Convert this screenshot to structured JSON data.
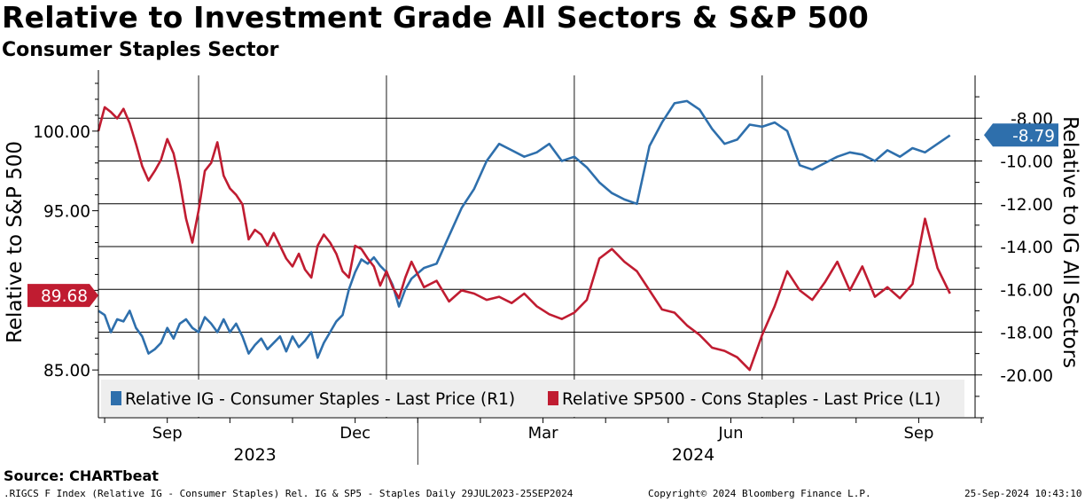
{
  "header": {
    "title": "Relative to Investment Grade All Sectors & S&P 500",
    "subtitle": "Consumer Staples Sector"
  },
  "footer": {
    "source": "Source: CHARTbeat",
    "description": ".RIGCS F Index (Relative IG - Consumer Staples) Rel. IG & SP5 - Staples  Daily 29JUL2023-25SEP2024",
    "copyright": "Copyright© 2024 Bloomberg Finance L.P.",
    "timestamp": "25-Sep-2024 10:43:10"
  },
  "colors": {
    "blue": "#2e6fac",
    "red": "#c01c31"
  },
  "chart_data": {
    "type": "line",
    "title": "Relative to Investment Grade All Sectors & S&P 500",
    "subtitle": "Consumer Staples Sector",
    "x_range": [
      0,
      14.0
    ],
    "x_unit": "months since 2023-07-29",
    "x_ticks": [
      {
        "pos": 1.1,
        "label": "Sep"
      },
      {
        "pos": 4.1,
        "label": "Dec"
      },
      {
        "pos": 7.1,
        "label": "Mar"
      },
      {
        "pos": 10.1,
        "label": "Jun"
      },
      {
        "pos": 13.1,
        "label": "Sep"
      }
    ],
    "year_labels": [
      {
        "pos": 2.5,
        "label": "2023"
      },
      {
        "pos": 9.5,
        "label": "2024"
      }
    ],
    "year_divider": 5.1,
    "left_axis": {
      "label": "Relative to S&P 500",
      "range": [
        82.0,
        103.5
      ],
      "ticks": [
        "100.00",
        "95.00",
        "90.00",
        "85.00"
      ],
      "tick_values": [
        100,
        95,
        90,
        85
      ]
    },
    "right_axis": {
      "label": "Relative to IG All Sectors",
      "range": [
        -22.0,
        -6.0
      ],
      "ticks": [
        "-8.00",
        "-10.00",
        "-12.00",
        "-14.00",
        "-16.00",
        "-18.00",
        "-20.00"
      ],
      "tick_values": [
        -8,
        -10,
        -12,
        -14,
        -16,
        -18,
        -20
      ]
    },
    "series": [
      {
        "name": "Relative IG - Consumer Staples - Last Price (R1)",
        "axis": "right",
        "color": "#2e6fac",
        "last_value": -8.79,
        "last_label": "-8.79",
        "x": [
          0,
          0.1,
          0.2,
          0.3,
          0.4,
          0.5,
          0.6,
          0.7,
          0.8,
          0.9,
          1.0,
          1.1,
          1.2,
          1.3,
          1.4,
          1.5,
          1.6,
          1.7,
          1.8,
          1.9,
          2.0,
          2.1,
          2.2,
          2.3,
          2.4,
          2.5,
          2.6,
          2.7,
          2.8,
          2.9,
          3.0,
          3.1,
          3.2,
          3.3,
          3.4,
          3.5,
          3.6,
          3.7,
          3.8,
          3.9,
          4.0,
          4.1,
          4.2,
          4.3,
          4.4,
          4.5,
          4.6,
          4.7,
          4.8,
          4.9,
          5.0,
          5.2,
          5.4,
          5.6,
          5.8,
          6.0,
          6.2,
          6.4,
          6.6,
          6.8,
          7.0,
          7.2,
          7.4,
          7.6,
          7.8,
          8.0,
          8.2,
          8.4,
          8.6,
          8.8,
          9.0,
          9.2,
          9.4,
          9.6,
          9.8,
          10.0,
          10.2,
          10.4,
          10.6,
          10.8,
          11.0,
          11.2,
          11.4,
          11.6,
          11.8,
          12.0,
          12.2,
          12.4,
          12.6,
          12.8,
          13.0,
          13.2,
          13.4,
          13.6
        ],
        "values": [
          -17.0,
          -17.2,
          -18.0,
          -17.4,
          -17.5,
          -17.0,
          -17.8,
          -18.2,
          -19.0,
          -18.8,
          -18.5,
          -17.8,
          -18.3,
          -17.6,
          -17.4,
          -17.8,
          -18.0,
          -17.3,
          -17.6,
          -18.0,
          -17.4,
          -18.0,
          -17.6,
          -18.2,
          -19.0,
          -18.6,
          -18.3,
          -18.8,
          -18.5,
          -18.2,
          -18.9,
          -18.2,
          -18.7,
          -18.4,
          -18.0,
          -19.2,
          -18.5,
          -18.0,
          -17.5,
          -17.2,
          -16.0,
          -15.2,
          -14.6,
          -14.8,
          -14.5,
          -14.9,
          -15.2,
          -15.8,
          -16.8,
          -16.0,
          -15.5,
          -15.0,
          -14.8,
          -13.5,
          -12.2,
          -11.3,
          -10.0,
          -9.2,
          -9.5,
          -9.8,
          -9.6,
          -9.2,
          -10.0,
          -9.8,
          -10.3,
          -11.0,
          -11.5,
          -11.8,
          -12.0,
          -9.3,
          -8.2,
          -7.3,
          -7.2,
          -7.6,
          -8.5,
          -9.2,
          -9.0,
          -8.3,
          -8.4,
          -8.2,
          -8.6,
          -10.2,
          -10.4,
          -10.1,
          -9.8,
          -9.6,
          -9.7,
          -10.0,
          -9.5,
          -9.8,
          -9.4,
          -9.6,
          -9.2,
          -8.8
        ]
      },
      {
        "name": "Relative SP500 - Cons Staples - Last Price (L1)",
        "axis": "left",
        "color": "#c01c31",
        "last_value": 89.68,
        "last_label": "89.68",
        "x": [
          0,
          0.1,
          0.2,
          0.3,
          0.4,
          0.5,
          0.6,
          0.7,
          0.8,
          0.9,
          1.0,
          1.1,
          1.2,
          1.3,
          1.4,
          1.5,
          1.6,
          1.7,
          1.8,
          1.9,
          2.0,
          2.1,
          2.2,
          2.3,
          2.4,
          2.5,
          2.6,
          2.7,
          2.8,
          2.9,
          3.0,
          3.1,
          3.2,
          3.3,
          3.4,
          3.5,
          3.6,
          3.7,
          3.8,
          3.9,
          4.0,
          4.1,
          4.2,
          4.3,
          4.4,
          4.5,
          4.6,
          4.7,
          4.8,
          4.9,
          5.0,
          5.2,
          5.4,
          5.6,
          5.8,
          6.0,
          6.2,
          6.4,
          6.6,
          6.8,
          7.0,
          7.2,
          7.4,
          7.6,
          7.8,
          8.0,
          8.2,
          8.4,
          8.6,
          8.8,
          9.0,
          9.2,
          9.4,
          9.6,
          9.8,
          10.0,
          10.2,
          10.4,
          10.6,
          10.8,
          11.0,
          11.2,
          11.4,
          11.6,
          11.8,
          12.0,
          12.2,
          12.4,
          12.6,
          12.8,
          13.0,
          13.2,
          13.4,
          13.6
        ],
        "values": [
          100.0,
          101.5,
          101.2,
          100.8,
          101.4,
          100.5,
          99.2,
          97.8,
          96.9,
          97.5,
          98.2,
          99.5,
          98.6,
          96.8,
          94.5,
          93.0,
          95.0,
          97.5,
          98.0,
          99.3,
          97.2,
          96.4,
          96.0,
          95.4,
          93.2,
          93.8,
          93.5,
          92.8,
          93.6,
          92.8,
          92.0,
          91.5,
          92.3,
          91.3,
          90.8,
          92.8,
          93.5,
          93.0,
          92.3,
          91.2,
          90.8,
          92.8,
          92.6,
          92.0,
          91.5,
          90.3,
          91.2,
          90.2,
          89.5,
          90.8,
          91.8,
          90.2,
          90.6,
          89.3,
          90.0,
          89.8,
          89.4,
          89.6,
          89.2,
          89.8,
          89.0,
          88.5,
          88.2,
          88.6,
          89.4,
          92.0,
          92.6,
          91.8,
          91.2,
          90.0,
          88.8,
          88.6,
          87.8,
          87.2,
          86.4,
          86.2,
          85.8,
          85.0,
          87.2,
          89.0,
          91.2,
          90.0,
          89.4,
          90.5,
          91.8,
          90.0,
          91.5,
          89.6,
          90.2,
          89.5,
          90.4,
          94.5,
          91.4,
          89.8
        ]
      }
    ],
    "legend": {
      "placement": "bottom-inside",
      "entries": [
        "Relative IG - Consumer Staples - Last Price (R1)",
        "Relative SP500 - Cons Staples - Last Price (L1)"
      ]
    },
    "grid": true
  }
}
